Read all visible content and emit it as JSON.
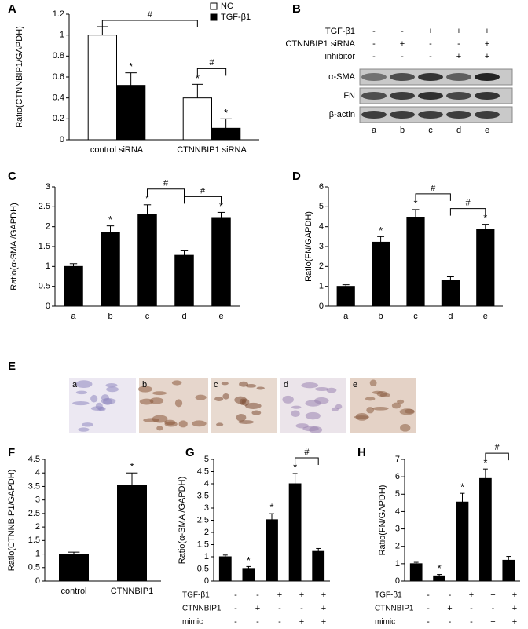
{
  "chart_data": [
    {
      "type": "bar",
      "panel": "A",
      "ylabel": "Ratio(CTNNBIP1/GAPDH)",
      "categories": [
        "control  siRNA",
        "CTNNBIP1 siRNA"
      ],
      "series": [
        {
          "name": "NC",
          "color": "#ffffff",
          "values": [
            1.0,
            0.4
          ],
          "errors": [
            0.08,
            0.13
          ],
          "stars": [
            null,
            "*"
          ]
        },
        {
          "name": "TGF-β1",
          "color": "#000000",
          "values": [
            0.52,
            0.11
          ],
          "errors": [
            0.12,
            0.09
          ],
          "stars": [
            "*",
            "*"
          ]
        }
      ],
      "ylim": [
        0,
        1.2
      ],
      "yticks": [
        0,
        0.2,
        0.4,
        0.6,
        0.8,
        1,
        1.2
      ],
      "legend": "top-right",
      "brackets": [
        {
          "label": "#",
          "from": [
            0,
            0
          ],
          "to": [
            0,
            1
          ]
        },
        {
          "label": "#",
          "from": [
            0,
            1
          ],
          "to": [
            1,
            1
          ]
        }
      ]
    },
    {
      "type": "bar",
      "panel": "C",
      "ylabel": "Ratio(α-SMA /GAPDH)",
      "color": "#000000",
      "categories": [
        "a",
        "b",
        "c",
        "d",
        "e"
      ],
      "values": [
        1.0,
        1.85,
        2.3,
        1.28,
        2.23
      ],
      "errors": [
        0.07,
        0.17,
        0.25,
        0.13,
        0.13
      ],
      "stars": [
        null,
        "*",
        "*",
        null,
        "*"
      ],
      "ylim": [
        0,
        3
      ],
      "yticks": [
        0,
        0.5,
        1,
        1.5,
        2,
        2.5,
        3
      ],
      "brackets": [
        {
          "label": "#",
          "from": 2,
          "to": 3
        },
        {
          "label": "#",
          "from": 3,
          "to": 4
        }
      ]
    },
    {
      "type": "bar",
      "panel": "D",
      "ylabel": "Ratio(FN/GAPDH)",
      "color": "#000000",
      "categories": [
        "a",
        "b",
        "c",
        "d",
        "e"
      ],
      "values": [
        1.0,
        3.22,
        4.48,
        1.3,
        3.87
      ],
      "errors": [
        0.08,
        0.28,
        0.38,
        0.18,
        0.25
      ],
      "stars": [
        null,
        "*",
        "*",
        null,
        "*"
      ],
      "ylim": [
        0,
        6
      ],
      "yticks": [
        0,
        1,
        2,
        3,
        4,
        5,
        6
      ],
      "brackets": [
        {
          "label": "#",
          "from": 2,
          "to": 3
        },
        {
          "label": "#",
          "from": 3,
          "to": 4
        }
      ]
    },
    {
      "type": "bar",
      "panel": "F",
      "ylabel": "Ratio(CTNNBIP1/GAPDH)",
      "color": "#000000",
      "categories": [
        "control",
        "CTNNBIP1"
      ],
      "values": [
        1.0,
        3.55
      ],
      "errors": [
        0.07,
        0.45
      ],
      "stars": [
        null,
        "*"
      ],
      "ylim": [
        0,
        4.5
      ],
      "yticks": [
        0,
        0.5,
        1,
        1.5,
        2,
        2.5,
        3,
        3.5,
        4,
        4.5
      ]
    },
    {
      "type": "bar",
      "panel": "G",
      "ylabel": "Ratio(α-SMA /GAPDH)",
      "color": "#000000",
      "categories": [
        null,
        null,
        null,
        null,
        null
      ],
      "values": [
        1.0,
        0.52,
        2.52,
        4.0,
        1.22
      ],
      "errors": [
        0.07,
        0.08,
        0.25,
        0.42,
        0.12
      ],
      "stars": [
        null,
        "*",
        "*",
        "*",
        null
      ],
      "ylim": [
        0,
        5
      ],
      "yticks": [
        0,
        0.5,
        1,
        1.5,
        2,
        2.5,
        3,
        3.5,
        4,
        4.5,
        5
      ],
      "brackets": [
        {
          "label": "#",
          "from": 3,
          "to": 4
        }
      ],
      "conditions": [
        {
          "name": "TGF-β1",
          "signs": [
            "-",
            "-",
            "+",
            "+",
            "+"
          ]
        },
        {
          "name": "CTNNBIP1",
          "signs": [
            "-",
            "+",
            "-",
            "-",
            "+"
          ]
        },
        {
          "name": "mimic",
          "signs": [
            "-",
            "-",
            "-",
            "+",
            "+"
          ]
        }
      ]
    },
    {
      "type": "bar",
      "panel": "H",
      "ylabel": "Ratio(FN/GAPDH)",
      "color": "#000000",
      "categories": [
        null,
        null,
        null,
        null,
        null
      ],
      "values": [
        1.0,
        0.3,
        4.55,
        5.9,
        1.2
      ],
      "errors": [
        0.08,
        0.08,
        0.5,
        0.55,
        0.22
      ],
      "stars": [
        null,
        "*",
        "*",
        "*",
        null
      ],
      "ylim": [
        0,
        7
      ],
      "yticks": [
        0,
        1,
        2,
        3,
        4,
        5,
        6,
        7
      ],
      "brackets": [
        {
          "label": "#",
          "from": 3,
          "to": 4
        }
      ],
      "conditions": [
        {
          "name": "TGF-β1",
          "signs": [
            "-",
            "-",
            "+",
            "+",
            "+"
          ]
        },
        {
          "name": "CTNNBIP1",
          "signs": [
            "-",
            "+",
            "-",
            "-",
            "+"
          ]
        },
        {
          "name": "mimic",
          "signs": [
            "-",
            "-",
            "-",
            "+",
            "+"
          ]
        }
      ]
    }
  ],
  "blot": {
    "panel": "B",
    "conditions": [
      {
        "name": "TGF-β1",
        "signs": [
          "-",
          "-",
          "+",
          "+",
          "+"
        ]
      },
      {
        "name": "CTNNBIP1 siRNA",
        "signs": [
          "-",
          "+",
          "-",
          "-",
          "+"
        ]
      },
      {
        "name": "inhibitor",
        "signs": [
          "-",
          "-",
          "-",
          "+",
          "+"
        ]
      }
    ],
    "bands": [
      "α-SMA",
      "FN",
      "β-actin"
    ],
    "lanes": [
      "a",
      "b",
      "c",
      "d",
      "e"
    ]
  },
  "micrographs": {
    "panel": "E",
    "images": [
      "a",
      "b",
      "c",
      "d",
      "e"
    ]
  }
}
